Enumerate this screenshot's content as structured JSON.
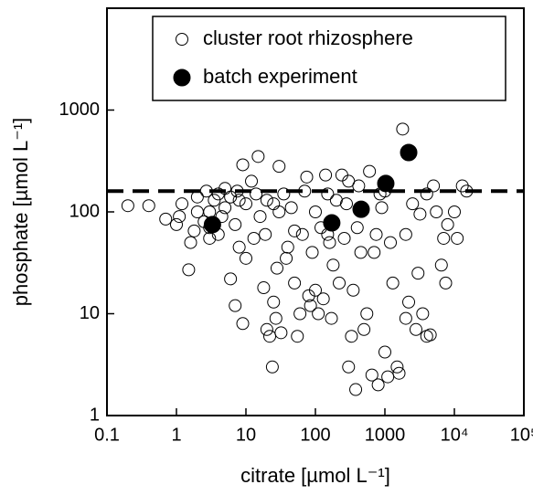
{
  "chart_data": {
    "type": "scatter",
    "xlabel": "citrate [µmol L⁻¹]",
    "ylabel": "phosphate [µmol L⁻¹]",
    "xscale": "log",
    "yscale": "log",
    "xlim": [
      0.1,
      100000
    ],
    "ylim": [
      1,
      10000
    ],
    "xticks": [
      0.1,
      1,
      10,
      100,
      1000,
      {
        "value": 10000,
        "label": "10⁴"
      },
      {
        "value": 100000,
        "label": "10⁵"
      }
    ],
    "yticks": [
      1,
      10,
      100,
      1000
    ],
    "hline": 160,
    "legend": "upper right",
    "series": [
      {
        "name": "cluster root rhizosphere",
        "marker": "open",
        "color": "#000000",
        "x": [
          0.2,
          0.4,
          0.7,
          1,
          1.2,
          1.5,
          1.6,
          1.8,
          2,
          2,
          2.5,
          2.7,
          3,
          3,
          3.5,
          4,
          4,
          4.5,
          5,
          5,
          6,
          6,
          7,
          7,
          7.5,
          8,
          8,
          9,
          9,
          10,
          10,
          12,
          13,
          14,
          15,
          16,
          18,
          19,
          20,
          20,
          22,
          24,
          25,
          27,
          28,
          30,
          30,
          32,
          35,
          38,
          40,
          45,
          50,
          55,
          60,
          65,
          70,
          75,
          80,
          85,
          90,
          100,
          100,
          110,
          120,
          130,
          140,
          150,
          160,
          170,
          180,
          200,
          220,
          240,
          260,
          280,
          300,
          330,
          350,
          380,
          400,
          420,
          450,
          500,
          550,
          600,
          650,
          700,
          750,
          800,
          850,
          900,
          1000,
          1100,
          1200,
          1300,
          1500,
          1600,
          1800,
          2000,
          2000,
          2200,
          2500,
          2800,
          3000,
          3200,
          3500,
          4000,
          4500,
          5000,
          5500,
          6500,
          7000,
          7500,
          8000,
          10000,
          11000,
          13000,
          15000,
          300,
          1000,
          4000,
          150,
          50,
          25,
          3,
          1.1
        ],
        "y": [
          115,
          115,
          85,
          75,
          120,
          27,
          50,
          65,
          100,
          140,
          80,
          160,
          55,
          100,
          130,
          60,
          150,
          90,
          110,
          170,
          22,
          140,
          12,
          75,
          160,
          130,
          45,
          8,
          290,
          120,
          35,
          200,
          55,
          150,
          350,
          90,
          18,
          60,
          7,
          130,
          6,
          3,
          13,
          9,
          28,
          280,
          100,
          6.5,
          150,
          35,
          45,
          110,
          20,
          6,
          10,
          60,
          160,
          220,
          15,
          12,
          40,
          17,
          100,
          10,
          70,
          14,
          230,
          150,
          50,
          9,
          30,
          130,
          20,
          230,
          55,
          120,
          3,
          6,
          17,
          1.8,
          70,
          180,
          40,
          7,
          10,
          250,
          2.5,
          40,
          60,
          2,
          150,
          110,
          4.2,
          2.4,
          50,
          20,
          3,
          2.6,
          650,
          9,
          60,
          13,
          120,
          7,
          25,
          95,
          10,
          6,
          6.2,
          180,
          100,
          30,
          55,
          20,
          75,
          100,
          55,
          180,
          160,
          200,
          160,
          150,
          60,
          65,
          120,
          70,
          90
        ]
      },
      {
        "name": "batch experiment",
        "marker": "filled",
        "color": "#000000",
        "x": [
          3.3,
          172,
          455,
          1030,
          2200
        ],
        "y": [
          75,
          78,
          106,
          190,
          383
        ]
      }
    ]
  }
}
